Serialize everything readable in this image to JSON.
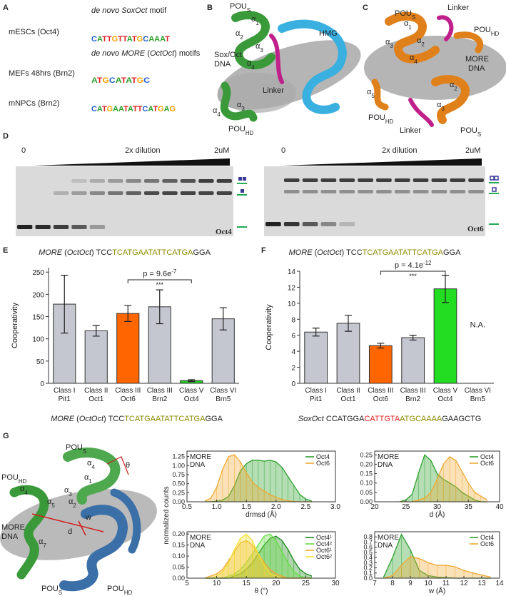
{
  "panel_labels": [
    "A",
    "B",
    "C",
    "D",
    "E",
    "F",
    "G"
  ],
  "panel_a": {
    "headings": [
      [
        {
          "text": "de novo SoxOct",
          "italic": true
        },
        {
          "text": " motif"
        }
      ],
      [
        {
          "text": "de novo MORE",
          "italic": true
        },
        {
          "text": " ("
        },
        {
          "text": "OctOct",
          "italic": true
        },
        {
          "text": ") motifs"
        }
      ]
    ],
    "rows": [
      {
        "label": "mESCs (Oct4)",
        "logo": "CATTGTTATGCAAAT"
      },
      {
        "label": "MEFs 48hrs (Brn2)",
        "logo": "ATGCATATGC"
      },
      {
        "label": "mNPCs (Brn2)",
        "logo": "CATGAATATTCATGAG"
      }
    ],
    "base_colors": {
      "A": "#2ca02c",
      "C": "#1f5fd0",
      "G": "#f5a000",
      "T": "#e02020"
    }
  },
  "panel_b": {
    "labels": [
      {
        "text": "POU",
        "sub": "S"
      },
      {
        "text": "α",
        "sub": "1"
      },
      {
        "text": "α",
        "sub": "2"
      },
      {
        "text": "α",
        "sub": "3"
      },
      {
        "text": "α",
        "sub": "4"
      },
      {
        "text": "HMG"
      },
      {
        "text": "Sox/Oct"
      },
      {
        "text": "DNA"
      },
      {
        "text": "Linker"
      },
      {
        "text": "α",
        "sub": "4"
      },
      {
        "text": "α",
        "sub": "3"
      },
      {
        "text": "POU",
        "sub": "HD"
      }
    ]
  },
  "panel_c": {
    "labels": [
      {
        "text": "POU",
        "sub": "S"
      },
      {
        "text": "Linker"
      },
      {
        "text": "α",
        "sub": "1"
      },
      {
        "text": "α",
        "sub": "3"
      },
      {
        "text": "α",
        "sub": "2"
      },
      {
        "text": "α",
        "sub": "4"
      },
      {
        "text": "POU",
        "sub": "HD"
      },
      {
        "text": "MORE"
      },
      {
        "text": "DNA"
      },
      {
        "text": "α",
        "sub": "5"
      },
      {
        "text": "POU",
        "sub": "HD"
      },
      {
        "text": "α",
        "sub": "2"
      },
      {
        "text": "α",
        "sub": "3"
      },
      {
        "text": "Linker"
      },
      {
        "text": "POU",
        "sub": "S"
      }
    ]
  },
  "panel_d": {
    "gels": [
      {
        "start": "0",
        "middle": "2x dilution",
        "end": "2uM",
        "protein": "Oct4",
        "caption": [
          {
            "text": "MORE",
            "italic": true
          },
          {
            "text": " ("
          },
          {
            "text": "OctOct",
            "italic": true
          },
          {
            "text": ") TCC"
          },
          {
            "text": "TCATGAATATTCATGA",
            "color": "#8a8a00"
          },
          {
            "text": "GGA"
          }
        ]
      },
      {
        "start": "0",
        "middle": "2x dilution",
        "end": "2uM",
        "protein": "Oct6",
        "caption": [
          {
            "text": "MORE",
            "italic": true
          },
          {
            "text": " ("
          },
          {
            "text": "OctOct",
            "italic": true
          },
          {
            "text": ") TCC"
          },
          {
            "text": "TCATGAATATTCATGA",
            "color": "#8a8a00"
          },
          {
            "text": "GGA"
          }
        ]
      }
    ]
  },
  "panel_g": {
    "ylabel": "normalized counts",
    "labels": [
      {
        "text": "POU",
        "sub": "S"
      },
      {
        "text": "α",
        "sub": "4"
      },
      {
        "text": "α",
        "sub": "1"
      },
      {
        "text": "α",
        "sub": "3"
      },
      {
        "text": "α",
        "sub": "2"
      },
      {
        "text": "POU",
        "sub": "HD"
      },
      {
        "text": "α",
        "sub": "4"
      },
      {
        "text": "α",
        "sub": "5"
      },
      {
        "text": "θ"
      },
      {
        "text": "w"
      },
      {
        "text": "d"
      },
      {
        "text": "MORE"
      },
      {
        "text": "DNA"
      },
      {
        "text": "α",
        "sub": "7"
      },
      {
        "text": "POU",
        "sub": "S"
      },
      {
        "text": "POU",
        "sub": "HD"
      }
    ]
  },
  "chart_data": [
    {
      "type": "bar",
      "ylabel": "Cooperativity",
      "categories": [
        [
          "Class I",
          "Pit1"
        ],
        [
          "Class II",
          "Oct1"
        ],
        [
          "Class III",
          "Oct6"
        ],
        [
          "Class III",
          "Brn2"
        ],
        [
          "Class V",
          "Oct4"
        ],
        [
          "Class VI",
          "Brn5"
        ]
      ],
      "values": [
        178,
        118,
        157,
        172,
        6,
        145
      ],
      "errors": [
        65,
        12,
        18,
        38,
        2,
        25
      ],
      "colors": [
        "#c4c6d0",
        "#c4c6d0",
        "#ff6600",
        "#c4c6d0",
        "#22cc22",
        "#c4c6d0"
      ],
      "ylim": [
        0,
        260
      ],
      "yticks": [
        0,
        50,
        100,
        150,
        200,
        250
      ],
      "pvalue": {
        "text": "p = 9.6e",
        "sup": "-7"
      },
      "stars": "***",
      "caption": [
        {
          "text": "MORE",
          "italic": true
        },
        {
          "text": " ("
        },
        {
          "text": "OctOct",
          "italic": true
        },
        {
          "text": ") TCC"
        },
        {
          "text": "TCATGAATATTCATGA",
          "color": "#8a8a00"
        },
        {
          "text": "GGA"
        }
      ]
    },
    {
      "type": "bar",
      "ylabel": "Cooperativity",
      "categories": [
        [
          "Class I",
          "Pit1"
        ],
        [
          "Class II",
          "Oct1"
        ],
        [
          "Class III",
          "Oct6"
        ],
        [
          "Class III",
          "Brn2"
        ],
        [
          "Class V",
          "Oct4"
        ],
        [
          "Class VI",
          "Brn5"
        ]
      ],
      "values": [
        6.4,
        7.5,
        4.7,
        5.7,
        11.8,
        null
      ],
      "errors": [
        0.5,
        1.0,
        0.3,
        0.3,
        1.7,
        null
      ],
      "colors": [
        "#c4c6d0",
        "#c4c6d0",
        "#ff6600",
        "#c4c6d0",
        "#22dd22",
        "#c4c6d0"
      ],
      "ylim": [
        0,
        14
      ],
      "yticks": [
        0,
        2,
        4,
        6,
        8,
        10,
        12,
        14
      ],
      "na_label": "N.A.",
      "pvalue": {
        "text": "p = 4.1e",
        "sup": "-12"
      },
      "stars": "***",
      "caption": [
        {
          "text": "SoxOct",
          "italic": true
        },
        {
          "text": " CCATGGA"
        },
        {
          "text": "CATTGTA",
          "color": "#e02020"
        },
        {
          "text": "ATGCAAAA",
          "color": "#8a8a00"
        },
        {
          "text": "GAAGCTG"
        }
      ]
    },
    {
      "type": "area",
      "annotation": [
        "MORE",
        "DNA"
      ],
      "xlabel": "drmsd (Å)",
      "legend": "upper right",
      "x": [
        0.8,
        0.9,
        1,
        1.1,
        1.2,
        1.3,
        1.4,
        1.5,
        1.6,
        1.7,
        1.8,
        1.9,
        2,
        2.1,
        2.2,
        2.3,
        2.4,
        2.5,
        2.6
      ],
      "series": [
        {
          "name": "Oct4",
          "color": "#2ca02c",
          "values": [
            0,
            0,
            0.02,
            0.05,
            0.15,
            0.45,
            0.85,
            1.05,
            1.15,
            1.15,
            1.12,
            1.15,
            1.1,
            0.95,
            0.7,
            0.45,
            0.2,
            0.08,
            0.02
          ]
        },
        {
          "name": "Oct6",
          "color": "#f0a830",
          "values": [
            0.02,
            0.1,
            0.4,
            0.9,
            1.25,
            1.3,
            1.1,
            0.8,
            0.55,
            0.4,
            0.3,
            0.2,
            0.12,
            0.07,
            0.03,
            0.01,
            0,
            0,
            0
          ]
        }
      ],
      "xlim": [
        0.5,
        3
      ],
      "ylim": [
        0,
        1.4
      ],
      "xticks": [
        0.5,
        {
          "value": 1,
          "label": "1.0"
        },
        1.5,
        {
          "value": 2,
          "label": "2.0"
        },
        2.5,
        {
          "value": 3,
          "label": "3.0"
        }
      ],
      "yticks": [
        {
          "value": 0,
          "label": "0.00"
        },
        0.25,
        {
          "value": 0.5,
          "label": "0.50"
        },
        0.75,
        {
          "value": 1,
          "label": "1.00"
        },
        1.25
      ]
    },
    {
      "type": "area",
      "annotation": [
        "MORE",
        "DNA"
      ],
      "xlabel": "d (Å)",
      "legend": "upper right",
      "x": [
        24,
        25,
        26,
        27,
        28,
        29,
        30,
        31,
        32,
        33,
        34,
        35,
        36,
        37,
        38
      ],
      "series": [
        {
          "name": "Oct4",
          "color": "#2ca02c",
          "values": [
            0,
            0.01,
            0.04,
            0.15,
            0.25,
            0.22,
            0.15,
            0.12,
            0.1,
            0.08,
            0.05,
            0.03,
            0.01,
            0,
            0
          ]
        },
        {
          "name": "Oct6",
          "color": "#f0a830",
          "values": [
            0,
            0,
            0,
            0.01,
            0.02,
            0.05,
            0.12,
            0.2,
            0.24,
            0.22,
            0.16,
            0.1,
            0.05,
            0.03,
            0.01
          ]
        }
      ],
      "xlim": [
        20,
        40
      ],
      "ylim": [
        0,
        0.27
      ],
      "xticks": [
        20,
        25,
        30,
        35,
        40
      ],
      "yticks": [
        {
          "value": 0,
          "label": "0.00"
        },
        0.05,
        {
          "value": 0.1,
          "label": "0.10"
        },
        0.15,
        {
          "value": 0.2,
          "label": "0.20"
        },
        0.25
      ]
    },
    {
      "type": "area",
      "annotation": [
        "MORE",
        "DNA"
      ],
      "xlabel": "θ (°)",
      "legend": "upper right",
      "x": [
        8,
        9,
        10,
        11,
        12,
        13,
        14,
        15,
        16,
        17,
        18,
        19,
        20,
        21,
        22,
        23,
        24,
        25,
        26
      ],
      "series": [
        {
          "name": "Oct4¹",
          "color": "#1a8a1a",
          "values": [
            0,
            0,
            0,
            0,
            0,
            0.01,
            0.02,
            0.04,
            0.07,
            0.11,
            0.15,
            0.18,
            0.19,
            0.17,
            0.13,
            0.08,
            0.04,
            0.02,
            0.01
          ]
        },
        {
          "name": "Oct4²",
          "color": "#66dd44",
          "values": [
            0,
            0,
            0,
            0,
            0.01,
            0.02,
            0.04,
            0.07,
            0.11,
            0.15,
            0.19,
            0.2,
            0.17,
            0.12,
            0.07,
            0.03,
            0.01,
            0,
            0
          ]
        },
        {
          "name": "Oct6¹",
          "color": "#f0a830",
          "values": [
            0,
            0.01,
            0.02,
            0.04,
            0.08,
            0.12,
            0.16,
            0.17,
            0.15,
            0.11,
            0.07,
            0.04,
            0.02,
            0.01,
            0,
            0,
            0,
            0,
            0
          ]
        },
        {
          "name": "Oct6²",
          "color": "#f2e030",
          "values": [
            0,
            0,
            0.01,
            0.03,
            0.07,
            0.13,
            0.18,
            0.2,
            0.17,
            0.11,
            0.06,
            0.02,
            0.01,
            0,
            0,
            0,
            0,
            0,
            0
          ]
        }
      ],
      "xlim": [
        5,
        30
      ],
      "ylim": [
        0,
        0.21
      ],
      "xticks": [
        5,
        10,
        15,
        20,
        25,
        30
      ],
      "yticks": [
        {
          "value": 0,
          "label": "0.00"
        },
        0.05,
        {
          "value": 0.1,
          "label": "0.10"
        },
        0.15,
        {
          "value": 0.2,
          "label": "0.20"
        }
      ]
    },
    {
      "type": "area",
      "annotation": [
        "MORE",
        "DNA"
      ],
      "xlabel": "w (Å)",
      "legend": "upper right",
      "x": [
        7.5,
        8,
        8.5,
        9,
        9.5,
        10,
        10.5,
        11,
        11.5,
        12,
        12.5,
        13,
        13.5
      ],
      "series": [
        {
          "name": "Oct4",
          "color": "#2ca02c",
          "values": [
            0.02,
            0.4,
            0.85,
            0.55,
            0.15,
            0.05,
            0.02,
            0.01,
            0,
            0,
            0,
            0,
            0
          ]
        },
        {
          "name": "Oct6",
          "color": "#f0a830",
          "values": [
            0,
            0.05,
            0.25,
            0.42,
            0.38,
            0.3,
            0.25,
            0.25,
            0.22,
            0.15,
            0.1,
            0.06,
            0.02
          ]
        }
      ],
      "xlim": [
        7,
        14
      ],
      "ylim": [
        0,
        0.9
      ],
      "xticks": [
        7,
        8,
        9,
        10,
        11,
        12,
        13,
        14
      ],
      "yticks": [
        {
          "value": 0,
          "label": "0.0"
        },
        0.1,
        0.2,
        0.3,
        0.4,
        0.5,
        0.6,
        0.7,
        0.8
      ]
    }
  ]
}
